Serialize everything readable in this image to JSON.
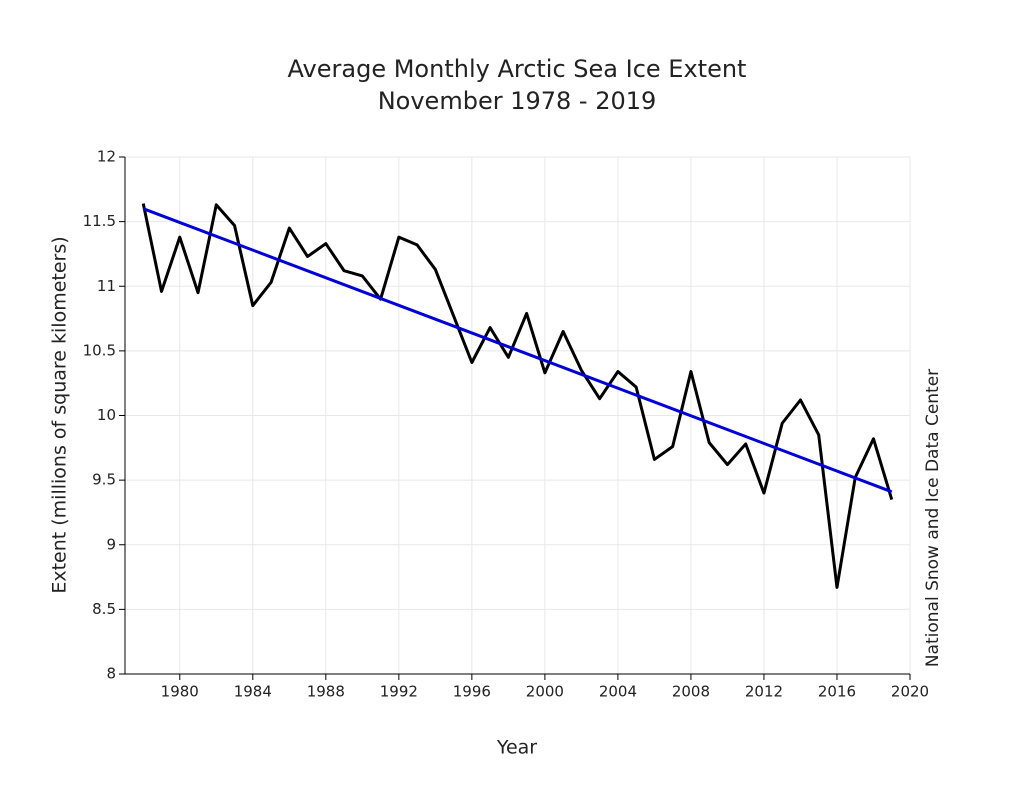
{
  "chart_data": {
    "type": "line",
    "title": "Average Monthly Arctic Sea Ice Extent",
    "subtitle": "November 1978 - 2019",
    "x_label": "Year",
    "y_label": "Extent (millions of square kilometers)",
    "annotation": "National Snow and Ice Data Center",
    "x": [
      1978,
      1979,
      1980,
      1981,
      1982,
      1983,
      1984,
      1985,
      1986,
      1987,
      1988,
      1989,
      1990,
      1991,
      1992,
      1993,
      1994,
      1995,
      1996,
      1997,
      1998,
      1999,
      2000,
      2001,
      2002,
      2003,
      2004,
      2005,
      2006,
      2007,
      2008,
      2009,
      2010,
      2011,
      2012,
      2013,
      2014,
      2015,
      2016,
      2017,
      2018,
      2019
    ],
    "series": [
      {
        "color": "#000000",
        "values": [
          11.64,
          10.96,
          11.38,
          10.95,
          11.63,
          11.47,
          10.85,
          11.03,
          11.45,
          11.23,
          11.33,
          11.12,
          11.08,
          10.9,
          11.38,
          11.32,
          11.13,
          10.77,
          10.41,
          10.68,
          10.45,
          10.79,
          10.33,
          10.65,
          10.35,
          10.13,
          10.34,
          10.22,
          9.66,
          9.76,
          10.34,
          9.79,
          9.62,
          9.78,
          9.4,
          9.94,
          10.12,
          9.85,
          8.67,
          9.52,
          9.82,
          9.35
        ]
      },
      {
        "color": "#0000dd",
        "x": [
          1978,
          2019
        ],
        "values": [
          11.6,
          9.41
        ]
      }
    ],
    "xlim": [
      1977,
      2020
    ],
    "xticks": [
      1980,
      1984,
      1988,
      1992,
      1996,
      2000,
      2004,
      2008,
      2012,
      2016,
      2020
    ],
    "ylim": [
      8,
      12
    ],
    "yticks": [
      8,
      8.5,
      9,
      9.5,
      10,
      10.5,
      11,
      11.5,
      12
    ],
    "grid": true
  }
}
